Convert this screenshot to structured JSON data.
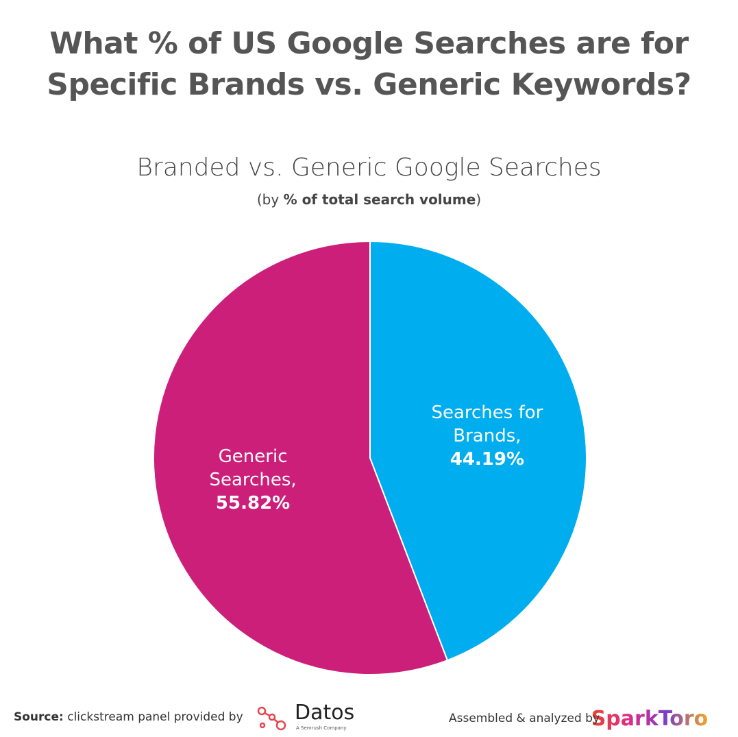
{
  "title_lines": [
    "What % of US Google Searches are for",
    "Specific Brands vs. Generic Keywords?"
  ],
  "chart_data": {
    "type": "pie",
    "title": "Branded vs. Generic Google Searches",
    "subtitle_parts": [
      "(by ",
      "% of total search volume",
      ")"
    ],
    "categories": [
      "Searches for Brands,",
      "Generic Searches,"
    ],
    "values": [
      44.19,
      55.82
    ],
    "value_labels": [
      "44.19%",
      "55.82%"
    ],
    "colors": [
      "#00aeef",
      "#cc1f7a"
    ]
  },
  "footer": {
    "source_label": "Source:",
    "source_text": "clickstream panel provided by",
    "datos": "Datos",
    "datos_tag": "A Semrush Company",
    "assembled": "Assembled & analyzed by",
    "sparktoro": "SparkToro"
  }
}
